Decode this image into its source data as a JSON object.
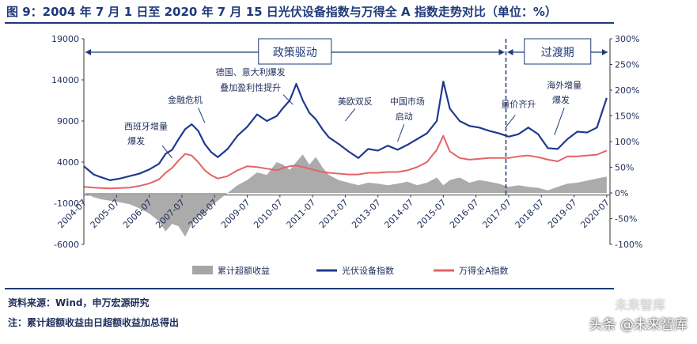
{
  "title": "图 9：2004 年 7 月 1 日至 2020 年 7 月 15 日光伏设备指数与万得全 A 指数走势对比（单位：%）",
  "source": "资料来源：Wind，申万宏源研究",
  "note": "注：累计超额收益由日超额收益加总得出",
  "watermark": "头条 @未来智库",
  "watermark2": "未来智库",
  "chart_data": {
    "type": "line",
    "x_ticks": [
      "2004-07",
      "2005-07",
      "2006-07",
      "2007-07",
      "2008-07",
      "2009-07",
      "2010-07",
      "2011-07",
      "2012-07",
      "2013-07",
      "2014-07",
      "2015-07",
      "2016-07",
      "2017-07",
      "2018-07",
      "2019-07",
      "2020-07"
    ],
    "left_axis": {
      "ticks": [
        "19000",
        "14000",
        "9000",
        "4000",
        "-1000",
        "-6000"
      ],
      "ylim": [
        -6000,
        19000
      ]
    },
    "right_axis": {
      "ticks": [
        "300%",
        "250%",
        "200%",
        "150%",
        "100%",
        "50%",
        "0%",
        "-50%",
        "-100%"
      ],
      "ylim": [
        -100,
        300
      ]
    },
    "phases": [
      {
        "label": "政策驱动",
        "start": "2004-07",
        "end": "2017-06"
      },
      {
        "label": "过渡期",
        "start": "2017-06",
        "end": "2020-07"
      }
    ],
    "annotations": [
      {
        "text": "西班牙增量",
        "x": 2006.4,
        "y": 8000
      },
      {
        "text": "爆发",
        "x": 2006.1,
        "y": 6200
      },
      {
        "text": "金融危机",
        "x": 2007.6,
        "y": 11200
      },
      {
        "text": "德国、意大利爆发",
        "x": 2009.6,
        "y": 14600
      },
      {
        "text": "叠加盈利性提升",
        "x": 2009.6,
        "y": 12700
      },
      {
        "text": "美欧双反",
        "x": 2012.8,
        "y": 11000
      },
      {
        "text": "中国市场",
        "x": 2014.4,
        "y": 11000
      },
      {
        "text": "启动",
        "x": 2014.3,
        "y": 9200
      },
      {
        "text": "量价齐升",
        "x": 2017.8,
        "y": 10700
      },
      {
        "text": "海外增量",
        "x": 2019.2,
        "y": 13000
      },
      {
        "text": "爆发",
        "x": 2019.1,
        "y": 11200
      }
    ],
    "series": [
      {
        "name": "累计超额收益",
        "color": "#a6a6a6",
        "axis": "right",
        "x": [
          2004.5,
          2004.8,
          2005.0,
          2005.3,
          2005.6,
          2005.9,
          2006.2,
          2006.5,
          2006.8,
          2007.0,
          2007.2,
          2007.4,
          2007.6,
          2007.8,
          2008.0,
          2008.2,
          2008.4,
          2008.6,
          2008.9,
          2009.2,
          2009.5,
          2009.8,
          2010.1,
          2010.4,
          2010.6,
          2010.8,
          2011.0,
          2011.2,
          2011.4,
          2011.6,
          2011.8,
          2012.0,
          2012.3,
          2012.6,
          2012.9,
          2013.2,
          2013.5,
          2013.8,
          2014.1,
          2014.4,
          2014.7,
          2015.0,
          2015.3,
          2015.5,
          2015.7,
          2016.0,
          2016.3,
          2016.6,
          2016.9,
          2017.2,
          2017.5,
          2017.8,
          2018.1,
          2018.4,
          2018.7,
          2019.0,
          2019.3,
          2019.6,
          2019.9,
          2020.2,
          2020.5
        ],
        "values": [
          0,
          -8,
          -12,
          -15,
          -18,
          -22,
          -30,
          -40,
          -55,
          -75,
          -60,
          -65,
          -85,
          -60,
          -45,
          -40,
          -25,
          -15,
          0,
          15,
          25,
          40,
          35,
          60,
          55,
          45,
          60,
          75,
          55,
          70,
          50,
          35,
          25,
          20,
          15,
          20,
          18,
          15,
          18,
          22,
          15,
          20,
          30,
          15,
          25,
          30,
          20,
          25,
          22,
          18,
          12,
          15,
          12,
          10,
          5,
          12,
          18,
          20,
          24,
          28,
          32
        ]
      },
      {
        "name": "光伏设备指数",
        "color": "#1f3a8f",
        "axis": "left",
        "x": [
          2004.5,
          2004.8,
          2005.0,
          2005.3,
          2005.6,
          2005.9,
          2006.2,
          2006.5,
          2006.8,
          2007.0,
          2007.2,
          2007.4,
          2007.6,
          2007.8,
          2008.0,
          2008.2,
          2008.4,
          2008.6,
          2008.9,
          2009.2,
          2009.5,
          2009.8,
          2010.1,
          2010.4,
          2010.6,
          2010.8,
          2011.0,
          2011.2,
          2011.4,
          2011.6,
          2011.8,
          2012.0,
          2012.3,
          2012.6,
          2012.9,
          2013.2,
          2013.5,
          2013.8,
          2014.1,
          2014.4,
          2014.7,
          2015.0,
          2015.3,
          2015.5,
          2015.7,
          2016.0,
          2016.3,
          2016.6,
          2016.9,
          2017.2,
          2017.5,
          2017.8,
          2018.1,
          2018.4,
          2018.7,
          2019.0,
          2019.3,
          2019.6,
          2019.9,
          2020.2,
          2020.5
        ],
        "values": [
          3500,
          2500,
          2200,
          1800,
          2000,
          2300,
          2600,
          3100,
          3800,
          5000,
          5500,
          6800,
          8000,
          8600,
          7800,
          6200,
          5200,
          4600,
          5600,
          7200,
          8300,
          9800,
          9000,
          9600,
          10600,
          11500,
          13500,
          11500,
          10000,
          9200,
          8000,
          7000,
          6200,
          5300,
          4500,
          5600,
          5400,
          6000,
          5500,
          6100,
          6800,
          7500,
          9000,
          13800,
          10500,
          9000,
          8400,
          8200,
          7800,
          7500,
          7100,
          7400,
          8200,
          7400,
          5700,
          5600,
          6800,
          7700,
          7600,
          8200,
          11800
        ]
      },
      {
        "name": "万得全A指数",
        "color": "#e46464",
        "axis": "left",
        "x": [
          2004.5,
          2004.8,
          2005.0,
          2005.3,
          2005.6,
          2005.9,
          2006.2,
          2006.5,
          2006.8,
          2007.0,
          2007.2,
          2007.4,
          2007.6,
          2007.8,
          2008.0,
          2008.2,
          2008.4,
          2008.6,
          2008.9,
          2009.2,
          2009.5,
          2009.8,
          2010.1,
          2010.4,
          2010.6,
          2010.8,
          2011.0,
          2011.2,
          2011.4,
          2011.6,
          2011.8,
          2012.0,
          2012.3,
          2012.6,
          2012.9,
          2013.2,
          2013.5,
          2013.8,
          2014.1,
          2014.4,
          2014.7,
          2015.0,
          2015.3,
          2015.5,
          2015.7,
          2016.0,
          2016.3,
          2016.6,
          2016.9,
          2017.2,
          2017.5,
          2017.8,
          2018.1,
          2018.4,
          2018.7,
          2019.0,
          2019.3,
          2019.6,
          2019.9,
          2020.2,
          2020.5
        ],
        "values": [
          1000,
          900,
          850,
          800,
          850,
          900,
          1100,
          1400,
          1900,
          2700,
          3300,
          4200,
          5000,
          4800,
          4000,
          3000,
          2400,
          2000,
          2300,
          3000,
          3500,
          3400,
          3200,
          3000,
          3300,
          3500,
          3600,
          3400,
          3200,
          3000,
          2800,
          2700,
          2600,
          2500,
          2500,
          2700,
          2700,
          2800,
          2800,
          3000,
          3400,
          4000,
          5500,
          7200,
          5300,
          4500,
          4300,
          4400,
          4500,
          4500,
          4500,
          4700,
          4800,
          4600,
          4300,
          4100,
          4700,
          4700,
          4800,
          4900,
          5400
        ]
      }
    ]
  }
}
